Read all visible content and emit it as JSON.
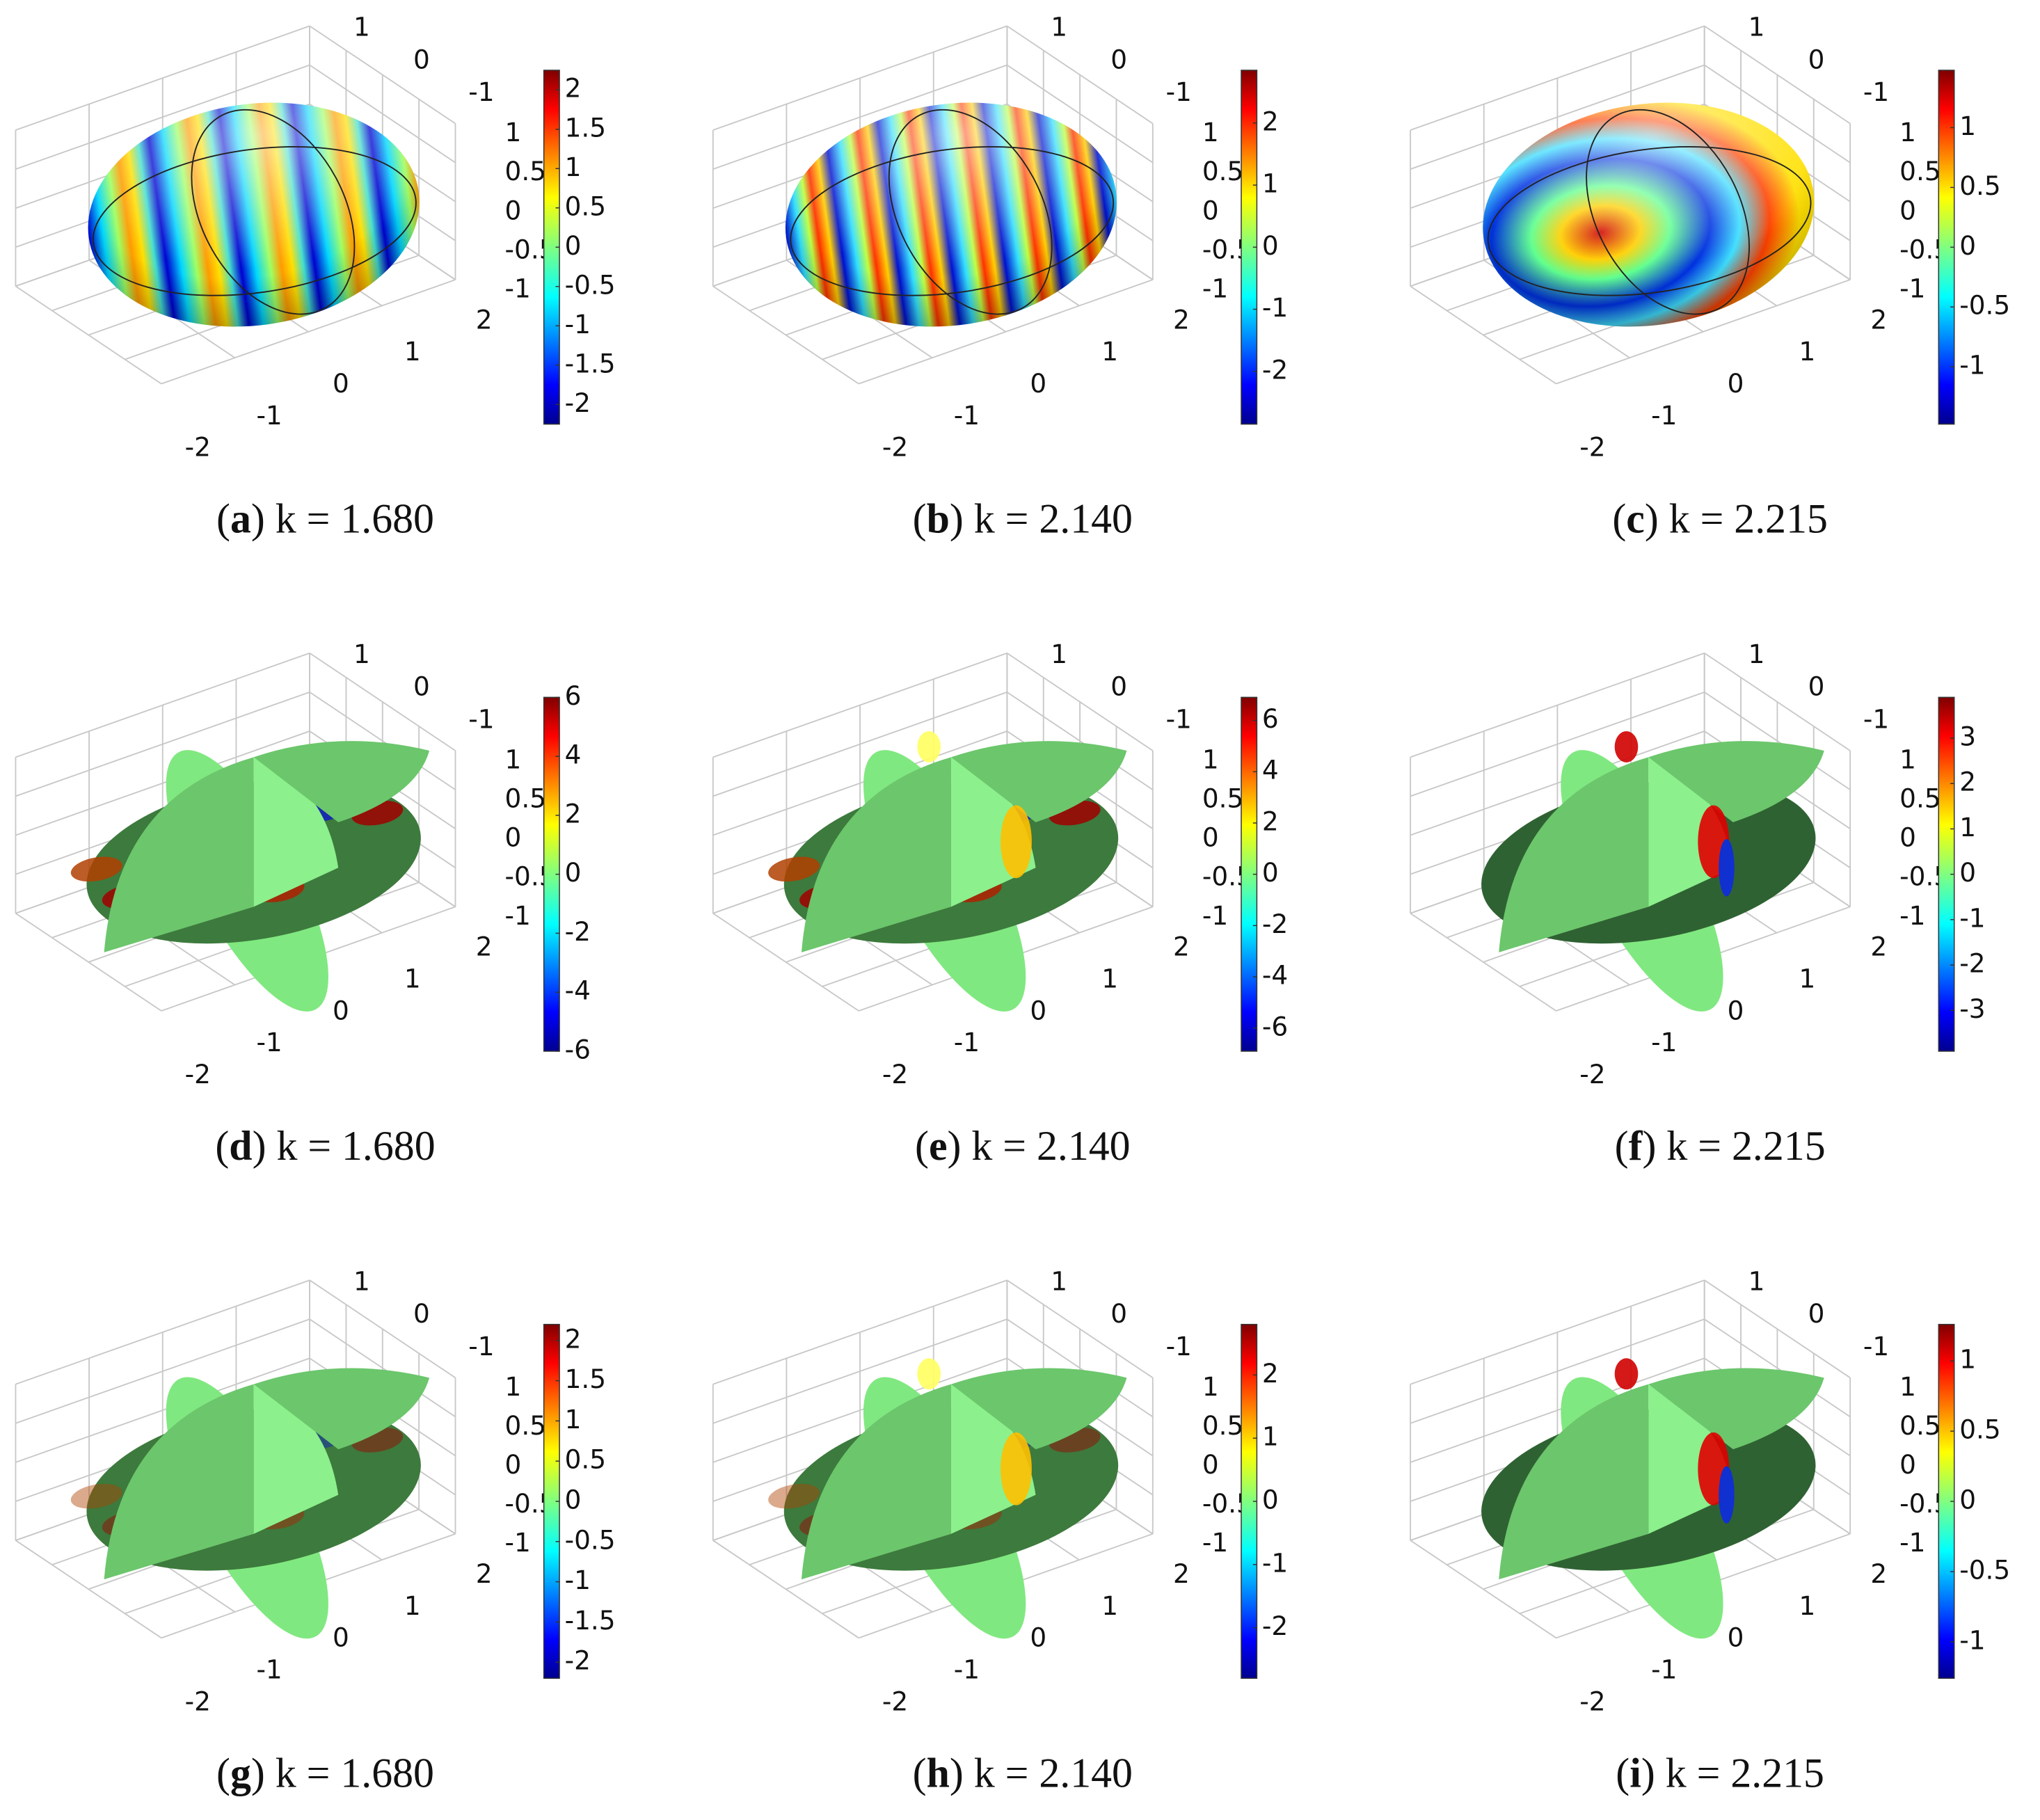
{
  "axes": {
    "x": [
      "-2",
      "-1",
      "0",
      "1",
      "2"
    ],
    "y": [
      "1",
      "0",
      "-1"
    ],
    "z": [
      "1",
      "0.5",
      "0",
      "-0.5",
      "-1"
    ]
  },
  "panels": [
    {
      "label": "a",
      "caption": "k = 1.680",
      "colorbar": {
        "lim": [
          -2.25,
          2.25
        ],
        "ticks": [
          2,
          1.5,
          1,
          0.5,
          0,
          -0.5,
          -1,
          -1.5,
          -2
        ]
      }
    },
    {
      "label": "b",
      "caption": "k = 2.140",
      "colorbar": {
        "lim": [
          -2.85,
          2.85
        ],
        "ticks": [
          2,
          1,
          0,
          -1,
          -2
        ]
      }
    },
    {
      "label": "c",
      "caption": "k = 2.215",
      "colorbar": {
        "lim": [
          -1.48,
          1.48
        ],
        "ticks": [
          1,
          0.5,
          0,
          -0.5,
          -1
        ]
      }
    },
    {
      "label": "d",
      "caption": "k = 1.680",
      "colorbar": {
        "lim": [
          -6,
          6
        ],
        "ticks": [
          6,
          4,
          2,
          0,
          -2,
          -4,
          -6
        ]
      }
    },
    {
      "label": "e",
      "caption": "k = 2.140",
      "colorbar": {
        "lim": [
          -6.9,
          6.9
        ],
        "ticks": [
          6,
          4,
          2,
          0,
          -2,
          -4,
          -6
        ]
      }
    },
    {
      "label": "f",
      "caption": "k = 2.215",
      "colorbar": {
        "lim": [
          -3.9,
          3.9
        ],
        "ticks": [
          3,
          2,
          1,
          0,
          -1,
          -2,
          -3
        ]
      }
    },
    {
      "label": "g",
      "caption": "k = 1.680",
      "colorbar": {
        "lim": [
          -2.2,
          2.2
        ],
        "ticks": [
          2,
          1.5,
          1,
          0.5,
          0,
          -0.5,
          -1,
          -1.5,
          -2
        ]
      }
    },
    {
      "label": "h",
      "caption": "k = 2.140",
      "colorbar": {
        "lim": [
          -2.8,
          2.8
        ],
        "ticks": [
          2,
          1,
          0,
          -1,
          -2
        ]
      }
    },
    {
      "label": "i",
      "caption": "k = 2.215",
      "colorbar": {
        "lim": [
          -1.26,
          1.26
        ],
        "ticks": [
          1,
          0.5,
          0,
          -0.5,
          -1
        ]
      }
    }
  ]
}
